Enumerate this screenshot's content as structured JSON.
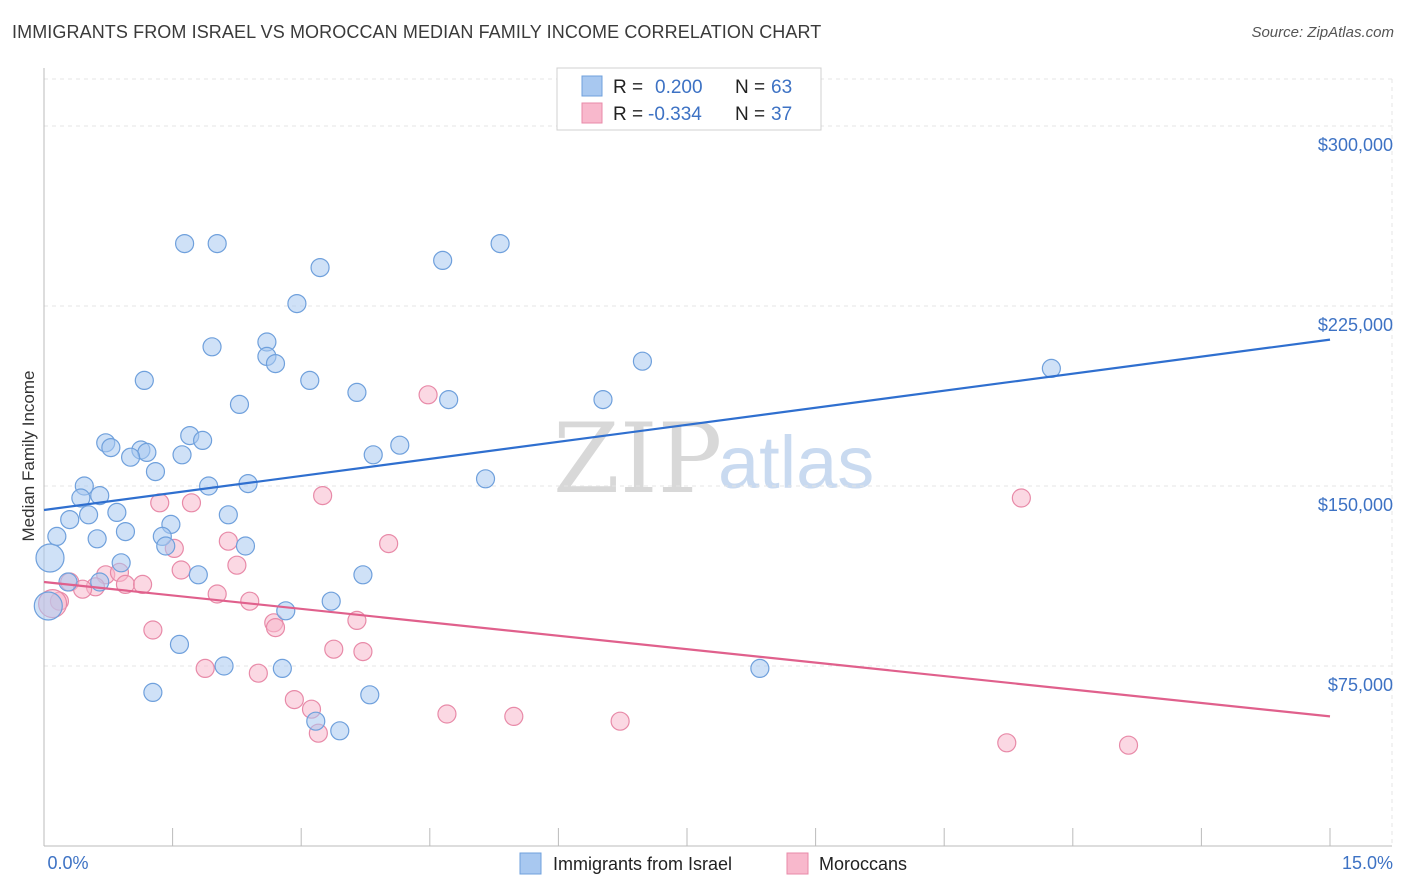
{
  "header": {
    "title": "IMMIGRANTS FROM ISRAEL VS MOROCCAN MEDIAN FAMILY INCOME CORRELATION CHART",
    "source": "Source: ZipAtlas.com"
  },
  "watermark": {
    "zip": "ZIP",
    "atlas": "atlas"
  },
  "legend": {
    "rows": [
      {
        "r_label": "R =",
        "r_value": "0.200",
        "n_label": "N =",
        "n_value": "63",
        "color": "#a8c8f0"
      },
      {
        "r_label": "R =",
        "r_value": "-0.334",
        "n_label": "N =",
        "n_value": "37",
        "color": "#f8b8cc"
      }
    ]
  },
  "bottom_legend": {
    "items": [
      {
        "label": "Immigrants from Israel",
        "color": "#a8c8f0"
      },
      {
        "label": "Moroccans",
        "color": "#f8b8cc"
      }
    ]
  },
  "chart_data": {
    "type": "scatter",
    "ylabel": "Median Family Income",
    "xlim": [
      0,
      15
    ],
    "ylim": [
      0,
      320000
    ],
    "x_tick_labels": [
      "0.0%",
      "15.0%"
    ],
    "y_ticks": [
      {
        "value": 75000,
        "label": "$75,000"
      },
      {
        "value": 150000,
        "label": "$150,000"
      },
      {
        "value": 225000,
        "label": "$225,000"
      },
      {
        "value": 300000,
        "label": "$300,000"
      }
    ],
    "grid": true,
    "series": [
      {
        "name": "Immigrants from Israel",
        "color": "#6fa0dc",
        "fill": "#a8c8f0",
        "trend": {
          "x": [
            0,
            15
          ],
          "y": [
            140000,
            211000
          ],
          "color": "#2f6fcf"
        },
        "points": [
          [
            1.64,
            251000
          ],
          [
            2.02,
            251000
          ],
          [
            5.32,
            251000
          ],
          [
            4.65,
            244000
          ],
          [
            3.22,
            241000
          ],
          [
            2.95,
            226000
          ],
          [
            1.96,
            208000
          ],
          [
            2.6,
            210000
          ],
          [
            2.6,
            204000
          ],
          [
            2.7,
            201000
          ],
          [
            6.98,
            202000
          ],
          [
            11.75,
            199000
          ],
          [
            1.17,
            194000
          ],
          [
            3.1,
            194000
          ],
          [
            3.65,
            189000
          ],
          [
            4.72,
            186000
          ],
          [
            6.52,
            186000
          ],
          [
            2.28,
            184000
          ],
          [
            1.7,
            171000
          ],
          [
            1.85,
            169000
          ],
          [
            0.72,
            168000
          ],
          [
            0.78,
            166000
          ],
          [
            1.13,
            165000
          ],
          [
            1.2,
            164000
          ],
          [
            4.15,
            167000
          ],
          [
            3.84,
            163000
          ],
          [
            1.61,
            163000
          ],
          [
            1.01,
            162000
          ],
          [
            1.3,
            156000
          ],
          [
            5.15,
            153000
          ],
          [
            0.47,
            150000
          ],
          [
            1.92,
            150000
          ],
          [
            2.38,
            151000
          ],
          [
            0.65,
            146000
          ],
          [
            0.43,
            145000
          ],
          [
            0.52,
            138000
          ],
          [
            0.85,
            139000
          ],
          [
            2.15,
            138000
          ],
          [
            0.3,
            136000
          ],
          [
            1.48,
            134000
          ],
          [
            0.95,
            131000
          ],
          [
            0.15,
            129000
          ],
          [
            1.38,
            129000
          ],
          [
            0.62,
            128000
          ],
          [
            1.42,
            125000
          ],
          [
            2.35,
            125000
          ],
          [
            0.07,
            120000
          ],
          [
            0.9,
            118000
          ],
          [
            3.72,
            113000
          ],
          [
            1.8,
            113000
          ],
          [
            0.28,
            110000
          ],
          [
            0.65,
            110000
          ],
          [
            3.35,
            102000
          ],
          [
            2.82,
            98000
          ],
          [
            0.05,
            100000
          ],
          [
            1.58,
            84000
          ],
          [
            2.1,
            75000
          ],
          [
            2.78,
            74000
          ],
          [
            8.35,
            74000
          ],
          [
            1.27,
            64000
          ],
          [
            3.8,
            63000
          ],
          [
            3.17,
            52000
          ],
          [
            3.45,
            48000
          ]
        ]
      },
      {
        "name": "Moroccans",
        "color": "#e88aa8",
        "fill": "#f8b8cc",
        "trend": {
          "x": [
            0,
            15
          ],
          "y": [
            110000,
            54000
          ],
          "color": "#e0608c"
        },
        "points": [
          [
            4.48,
            188000
          ],
          [
            11.4,
            145000
          ],
          [
            3.25,
            146000
          ],
          [
            1.35,
            143000
          ],
          [
            1.72,
            143000
          ],
          [
            2.15,
            127000
          ],
          [
            4.02,
            126000
          ],
          [
            1.52,
            124000
          ],
          [
            2.25,
            117000
          ],
          [
            1.6,
            115000
          ],
          [
            0.72,
            113000
          ],
          [
            0.88,
            114000
          ],
          [
            0.95,
            109000
          ],
          [
            1.15,
            109000
          ],
          [
            0.3,
            110000
          ],
          [
            0.6,
            108000
          ],
          [
            0.45,
            107000
          ],
          [
            2.02,
            105000
          ],
          [
            2.4,
            102000
          ],
          [
            0.18,
            102000
          ],
          [
            0.1,
            101000
          ],
          [
            2.68,
            93000
          ],
          [
            3.65,
            94000
          ],
          [
            2.7,
            91000
          ],
          [
            1.27,
            90000
          ],
          [
            3.38,
            82000
          ],
          [
            3.72,
            81000
          ],
          [
            1.88,
            74000
          ],
          [
            2.5,
            72000
          ],
          [
            2.92,
            61000
          ],
          [
            3.12,
            57000
          ],
          [
            4.7,
            55000
          ],
          [
            5.48,
            54000
          ],
          [
            6.72,
            52000
          ],
          [
            3.2,
            47000
          ],
          [
            11.23,
            43000
          ],
          [
            12.65,
            42000
          ]
        ]
      }
    ]
  }
}
